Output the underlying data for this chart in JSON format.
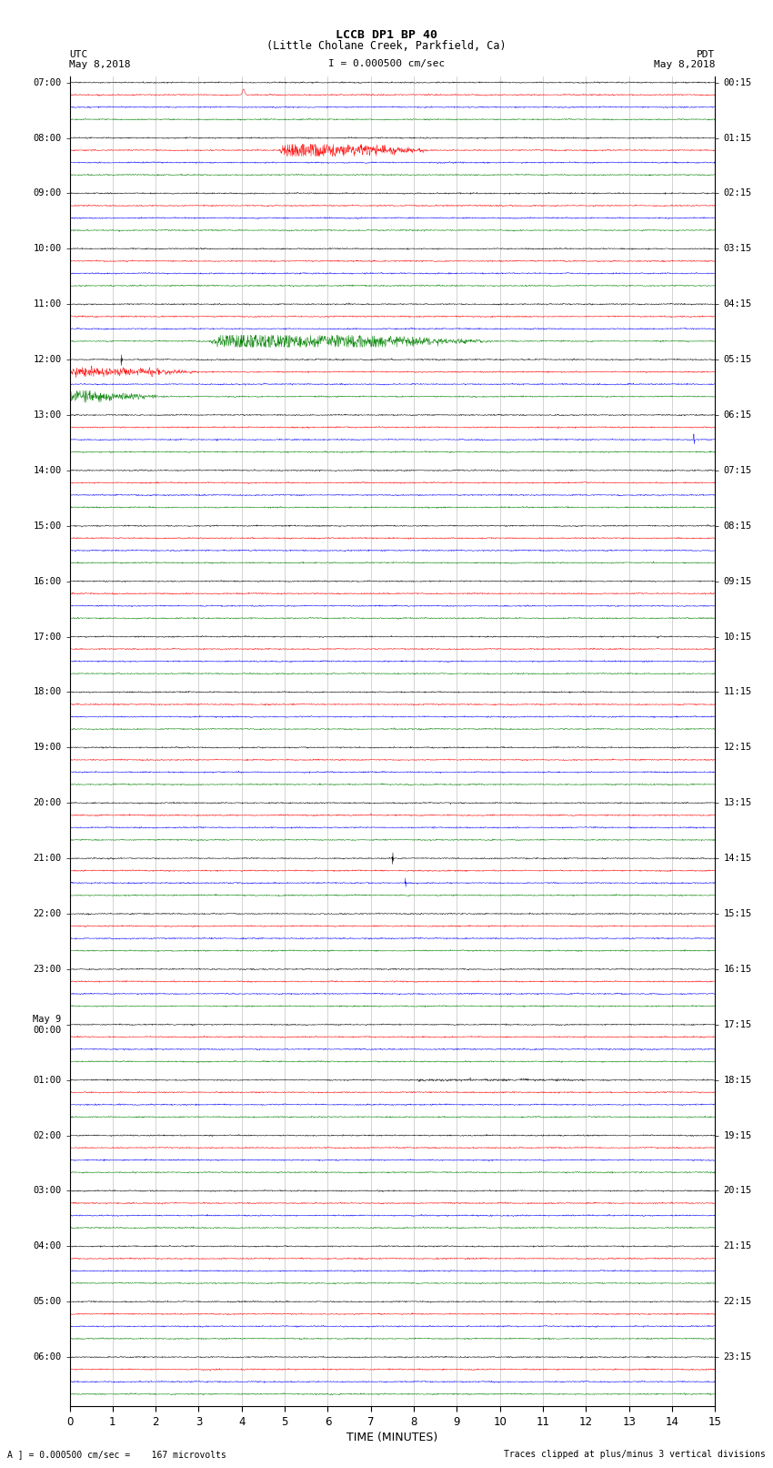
{
  "title_line1": "LCCB DP1 BP 40",
  "title_line2": "(Little Cholane Creek, Parkfield, Ca)",
  "left_header": "UTC",
  "right_header": "PDT",
  "left_date": "May 8,2018",
  "right_date": "May 8,2018",
  "scale_text": "I = 0.000500 cm/sec",
  "xlabel": "TIME (MINUTES)",
  "bottom_left": "A ] = 0.000500 cm/sec =    167 microvolts",
  "bottom_right": "Traces clipped at plus/minus 3 vertical divisions",
  "xmin": 0,
  "xmax": 15,
  "left_times": [
    "07:00",
    "08:00",
    "09:00",
    "10:00",
    "11:00",
    "12:00",
    "13:00",
    "14:00",
    "15:00",
    "16:00",
    "17:00",
    "18:00",
    "19:00",
    "20:00",
    "21:00",
    "22:00",
    "23:00",
    "May 9\n00:00",
    "01:00",
    "02:00",
    "03:00",
    "04:00",
    "05:00",
    "06:00"
  ],
  "right_times": [
    "00:15",
    "01:15",
    "02:15",
    "03:15",
    "04:15",
    "05:15",
    "06:15",
    "07:15",
    "08:15",
    "09:15",
    "10:15",
    "11:15",
    "12:15",
    "13:15",
    "14:15",
    "15:15",
    "16:15",
    "17:15",
    "18:15",
    "19:15",
    "20:15",
    "21:15",
    "22:15",
    "23:15"
  ],
  "trace_colors": [
    "black",
    "red",
    "blue",
    "green"
  ],
  "num_rows": 24,
  "traces_per_row": 4,
  "noise_amplitude": 0.025,
  "background_color": "white",
  "fig_width": 8.5,
  "fig_height": 16.13,
  "dpi": 100
}
